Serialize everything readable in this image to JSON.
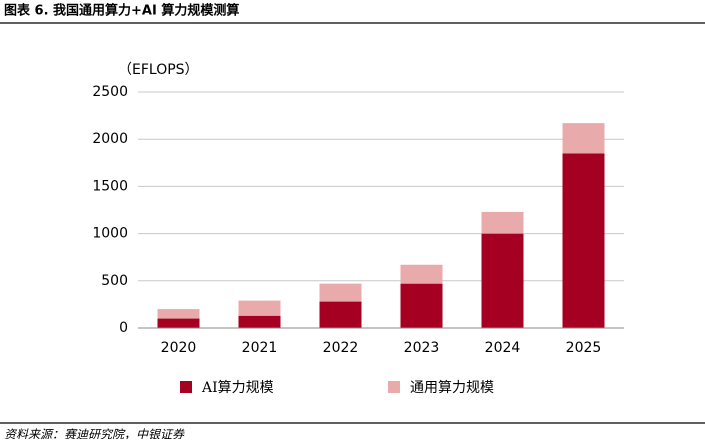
{
  "chart_data": {
    "type": "stacked_bar",
    "title": "图表 6. 我国通用算力+AI 算力规模测算",
    "y_axis_label": "（EFLOPS）",
    "source": "资料来源：赛迪研究院，中银证券",
    "categories": [
      "2020",
      "2021",
      "2022",
      "2023",
      "2024",
      "2025"
    ],
    "series": [
      {
        "name": "AI算力规模",
        "color": "#a50021",
        "values": [
          100,
          130,
          280,
          470,
          1000,
          1850
        ]
      },
      {
        "name": "通用算力规模",
        "color": "#e8aaaa",
        "values": [
          100,
          160,
          190,
          200,
          230,
          320
        ]
      }
    ],
    "ylim": [
      0,
      2500
    ],
    "yticks": [
      0,
      500,
      1000,
      1500,
      2000,
      2500
    ],
    "grid": true
  }
}
